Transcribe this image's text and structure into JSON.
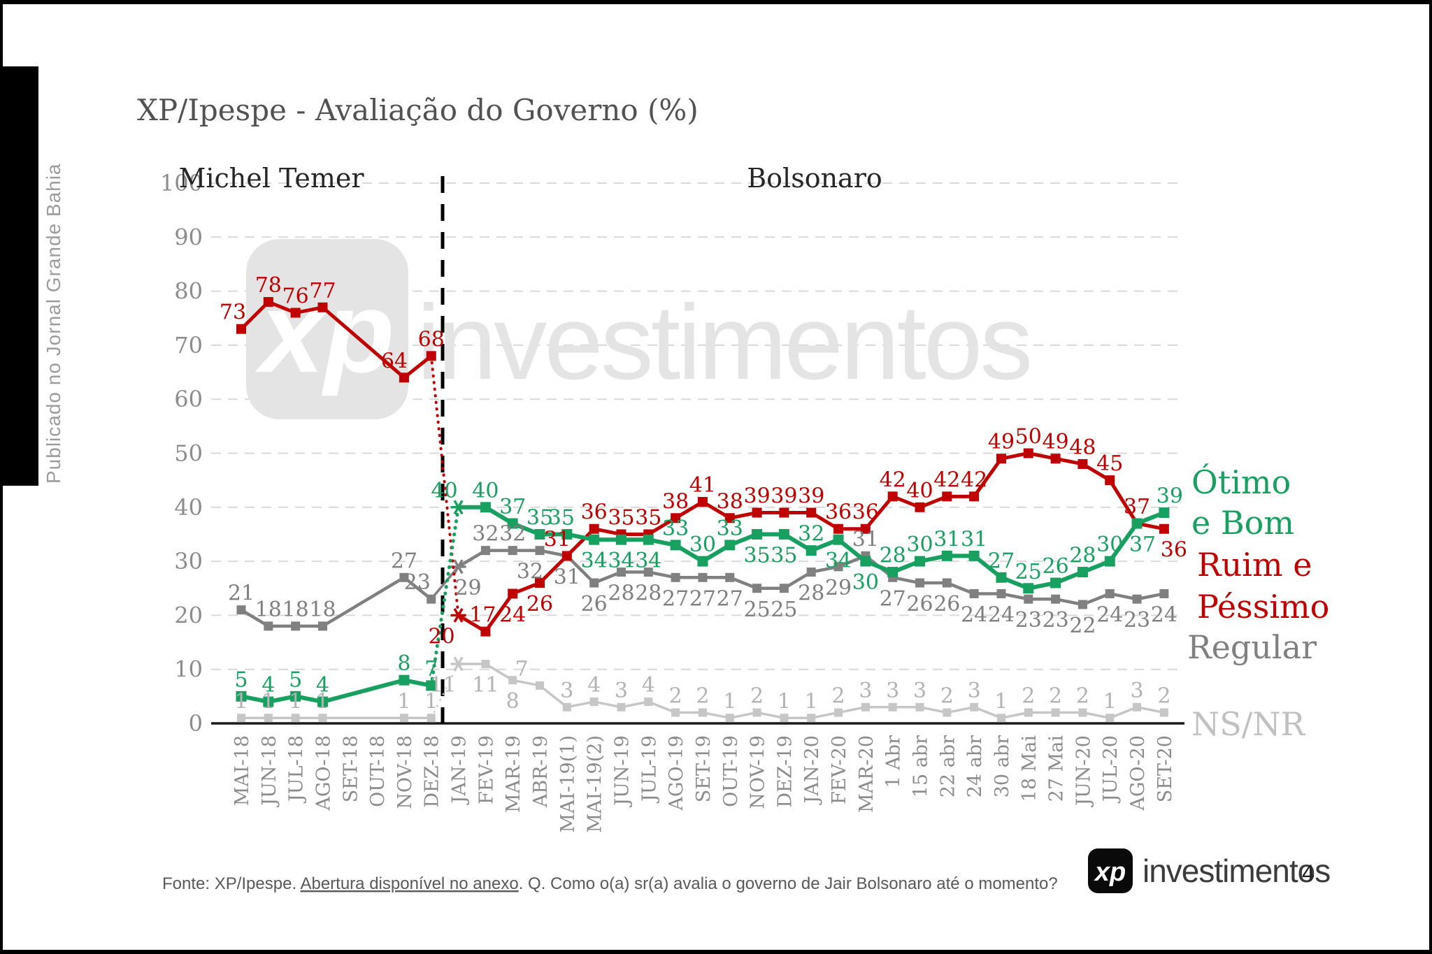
{
  "page": {
    "sidebar_text": "Publicado no Jornal Grande Bahia",
    "watermark": {
      "logo": "xp",
      "text": "investimentos"
    },
    "footer": {
      "fonte_prefix": "Fonte: XP/Ipespe. ",
      "fonte_link": "Abertura disponível no anexo",
      "fonte_suffix": ". Q. Como o(a) sr(a) avalia o governo de Jair Bolsonaro até o momento?",
      "logo_mark": "xp",
      "logo_text": "investimentos",
      "page_number": "4"
    }
  },
  "chart_data": {
    "type": "line",
    "title": "XP/Ipespe - Avaliação do Governo (%)",
    "period_labels": [
      {
        "label": "Michel Temer"
      },
      {
        "label": "Bolsonaro"
      }
    ],
    "divider_after_category": "DEZ-18",
    "ylim": [
      0,
      100
    ],
    "ytick_step": 10,
    "grid": "horizontal-dashed",
    "legend_position": "right",
    "categories": [
      "MAI-18",
      "JUN-18",
      "JUL-18",
      "AGO-18",
      "SET-18",
      "OUT-18",
      "NOV-18",
      "DEZ-18",
      "JAN-19",
      "FEV-19",
      "MAR-19",
      "ABR-19",
      "MAI-19(1)",
      "MAI-19(2)",
      "JUN-19",
      "JUL-19",
      "AGO-19",
      "SET-19",
      "OUT-19",
      "NOV-19",
      "DEZ-19",
      "JAN-20",
      "FEV-20",
      "MAR-20",
      "1 Abr",
      "15 abr",
      "22 abr",
      "24 abr",
      "30 abr",
      "18 Mai",
      "27 Mai",
      "JUN-20",
      "JUL-20",
      "AGO-20",
      "SET-20"
    ],
    "series": [
      {
        "name": "Ótimo e Bom",
        "legend_lines": [
          "Ótimo",
          "e Bom"
        ],
        "color": "#17a060",
        "values": [
          5,
          4,
          5,
          4,
          null,
          null,
          8,
          7,
          40,
          40,
          37,
          35,
          35,
          34,
          34,
          34,
          33,
          30,
          33,
          35,
          35,
          32,
          34,
          30,
          28,
          30,
          31,
          31,
          27,
          25,
          26,
          28,
          30,
          37,
          39
        ]
      },
      {
        "name": "Ruim e Péssimo",
        "legend_lines": [
          "Ruim e",
          "Péssimo"
        ],
        "color": "#c00000",
        "values": [
          73,
          78,
          76,
          77,
          null,
          null,
          64,
          68,
          20,
          17,
          24,
          26,
          31,
          36,
          35,
          35,
          38,
          41,
          38,
          39,
          39,
          39,
          36,
          36,
          42,
          40,
          42,
          42,
          49,
          50,
          49,
          48,
          45,
          37,
          36
        ]
      },
      {
        "name": "Regular",
        "legend_lines": [
          "Regular"
        ],
        "color": "#808080",
        "values": [
          21,
          18,
          18,
          18,
          null,
          null,
          27,
          23,
          29,
          32,
          32,
          32,
          31,
          26,
          28,
          28,
          27,
          27,
          27,
          25,
          25,
          28,
          29,
          31,
          27,
          26,
          26,
          24,
          24,
          23,
          23,
          22,
          24,
          23,
          24
        ]
      },
      {
        "name": "NS/NR",
        "legend_lines": [
          "NS/NR"
        ],
        "color": "#c6c6c6",
        "values": [
          1,
          1,
          1,
          1,
          null,
          null,
          1,
          1,
          11,
          11,
          8,
          7,
          3,
          4,
          3,
          4,
          2,
          2,
          1,
          2,
          1,
          1,
          2,
          3,
          3,
          3,
          2,
          3,
          1,
          2,
          2,
          2,
          1,
          3,
          2
        ]
      }
    ]
  }
}
